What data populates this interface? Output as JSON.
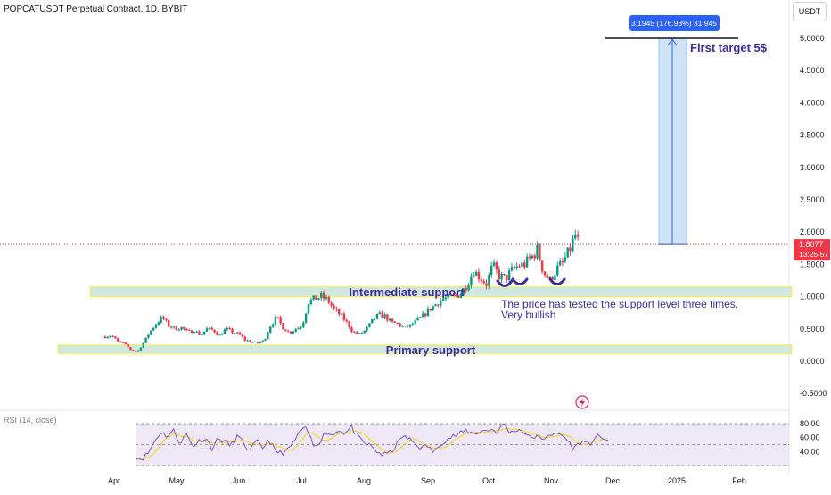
{
  "header": {
    "title": "POPCATUSDT Perpetual Contract, 1D, BYBIT",
    "currency": "USDT"
  },
  "price_label": {
    "value": "1.8077",
    "countdown": "13:25:57",
    "color": "#f23645"
  },
  "measure_label": "3.1945 (176.93%) 31,945",
  "annotations": {
    "target": "First target 5$",
    "intermediate": "Intermediate support",
    "primary": "Primary support",
    "comment_line1": "The price has tested the support level three times.",
    "comment_line2": "Very bullish"
  },
  "rsi": {
    "label": "RSI (14, close)",
    "ticks": [
      "80.00",
      "60.00",
      "40.00"
    ]
  },
  "colors": {
    "up": "#089981",
    "down": "#f23645",
    "support_fill": "#cfe9e0",
    "support_border": "#f5ef3b",
    "measure_fill": "#cfe3f7",
    "measure_line": "#2962ff",
    "annotation": "#3f2a9c",
    "rsi_line": "#7e57c2",
    "rsi_ma": "#f7d538",
    "rsi_band": "#ede7f6"
  },
  "chart_data": {
    "type": "candlestick",
    "ylim": [
      -0.5,
      5.0
    ],
    "y_ticks": [
      "5.0000",
      "4.5000",
      "4.0000",
      "3.5000",
      "3.0000",
      "2.5000",
      "2.0000",
      "1.5000",
      "1.0000",
      "0.5000",
      "0.0000",
      "-0.5000"
    ],
    "x_ticks": [
      "Apr",
      "May",
      "Jun",
      "Jul",
      "Aug",
      "Sep",
      "Oct",
      "Nov",
      "Dec",
      "2025",
      "Feb"
    ],
    "last_price": 1.8077,
    "target_price": 5.0,
    "supports": [
      {
        "name": "Intermediate support",
        "low": 1.0,
        "high": 1.15
      },
      {
        "name": "Primary support",
        "low": 0.12,
        "high": 0.25
      }
    ],
    "price_path": [
      [
        0,
        0.38
      ],
      [
        5,
        0.4
      ],
      [
        10,
        0.3
      ],
      [
        15,
        0.27
      ],
      [
        20,
        0.18
      ],
      [
        25,
        0.14
      ],
      [
        30,
        0.28
      ],
      [
        35,
        0.45
      ],
      [
        40,
        0.58
      ],
      [
        45,
        0.68
      ],
      [
        50,
        0.55
      ],
      [
        55,
        0.5
      ],
      [
        60,
        0.52
      ],
      [
        65,
        0.45
      ],
      [
        70,
        0.48
      ],
      [
        75,
        0.4
      ],
      [
        80,
        0.5
      ],
      [
        85,
        0.48
      ],
      [
        90,
        0.4
      ],
      [
        95,
        0.5
      ],
      [
        100,
        0.45
      ],
      [
        105,
        0.42
      ],
      [
        110,
        0.33
      ],
      [
        115,
        0.3
      ],
      [
        120,
        0.28
      ],
      [
        125,
        0.32
      ],
      [
        130,
        0.55
      ],
      [
        135,
        0.68
      ],
      [
        140,
        0.52
      ],
      [
        145,
        0.44
      ],
      [
        150,
        0.5
      ],
      [
        155,
        0.55
      ],
      [
        160,
        0.92
      ],
      [
        165,
        0.97
      ],
      [
        170,
        1.0
      ],
      [
        175,
        0.95
      ],
      [
        180,
        0.8
      ],
      [
        185,
        0.72
      ],
      [
        190,
        0.6
      ],
      [
        195,
        0.45
      ],
      [
        200,
        0.42
      ],
      [
        205,
        0.48
      ],
      [
        210,
        0.62
      ],
      [
        215,
        0.72
      ],
      [
        220,
        0.7
      ],
      [
        225,
        0.6
      ],
      [
        230,
        0.58
      ],
      [
        235,
        0.52
      ],
      [
        240,
        0.55
      ],
      [
        245,
        0.62
      ],
      [
        250,
        0.7
      ],
      [
        255,
        0.8
      ],
      [
        260,
        0.88
      ],
      [
        265,
        0.96
      ],
      [
        270,
        0.98
      ],
      [
        275,
        1.0
      ],
      [
        280,
        1.05
      ],
      [
        285,
        1.2
      ],
      [
        290,
        1.4
      ],
      [
        295,
        1.3
      ],
      [
        300,
        1.2
      ],
      [
        305,
        1.48
      ],
      [
        310,
        1.32
      ],
      [
        315,
        1.28
      ],
      [
        320,
        1.4
      ],
      [
        325,
        1.48
      ],
      [
        330,
        1.5
      ],
      [
        335,
        1.6
      ],
      [
        340,
        1.72
      ],
      [
        345,
        1.38
      ],
      [
        350,
        1.25
      ],
      [
        355,
        1.42
      ],
      [
        360,
        1.52
      ],
      [
        365,
        1.7
      ],
      [
        370,
        1.95
      ],
      [
        373,
        1.81
      ]
    ],
    "rsi_path": [
      [
        0,
        32
      ],
      [
        5,
        30
      ],
      [
        10,
        38
      ],
      [
        15,
        55
      ],
      [
        20,
        68
      ],
      [
        25,
        62
      ],
      [
        30,
        70
      ],
      [
        35,
        52
      ],
      [
        40,
        65
      ],
      [
        45,
        48
      ],
      [
        50,
        55
      ],
      [
        55,
        60
      ],
      [
        60,
        45
      ],
      [
        65,
        58
      ],
      [
        70,
        55
      ],
      [
        75,
        48
      ],
      [
        80,
        62
      ],
      [
        85,
        52
      ],
      [
        90,
        40
      ],
      [
        95,
        55
      ],
      [
        100,
        45
      ],
      [
        105,
        58
      ],
      [
        110,
        40
      ],
      [
        115,
        38
      ],
      [
        120,
        42
      ],
      [
        125,
        55
      ],
      [
        130,
        70
      ],
      [
        135,
        72
      ],
      [
        140,
        48
      ],
      [
        145,
        55
      ],
      [
        150,
        68
      ],
      [
        155,
        63
      ],
      [
        160,
        72
      ],
      [
        165,
        66
      ],
      [
        170,
        75
      ],
      [
        175,
        60
      ],
      [
        180,
        52
      ],
      [
        185,
        48
      ],
      [
        190,
        40
      ],
      [
        195,
        35
      ],
      [
        200,
        38
      ],
      [
        205,
        48
      ],
      [
        210,
        62
      ],
      [
        215,
        58
      ],
      [
        220,
        52
      ],
      [
        225,
        45
      ],
      [
        230,
        48
      ],
      [
        235,
        38
      ],
      [
        240,
        52
      ],
      [
        245,
        58
      ],
      [
        250,
        62
      ],
      [
        255,
        65
      ],
      [
        260,
        70
      ],
      [
        265,
        66
      ],
      [
        270,
        68
      ],
      [
        275,
        70
      ],
      [
        280,
        72
      ],
      [
        285,
        68
      ],
      [
        290,
        80
      ],
      [
        295,
        66
      ],
      [
        300,
        72
      ],
      [
        305,
        70
      ],
      [
        310,
        60
      ],
      [
        315,
        62
      ],
      [
        320,
        56
      ],
      [
        325,
        66
      ],
      [
        330,
        64
      ],
      [
        335,
        65
      ],
      [
        340,
        56
      ],
      [
        345,
        44
      ],
      [
        350,
        53
      ],
      [
        355,
        54
      ],
      [
        360,
        52
      ],
      [
        365,
        64
      ],
      [
        370,
        58
      ],
      [
        373,
        55
      ]
    ]
  }
}
